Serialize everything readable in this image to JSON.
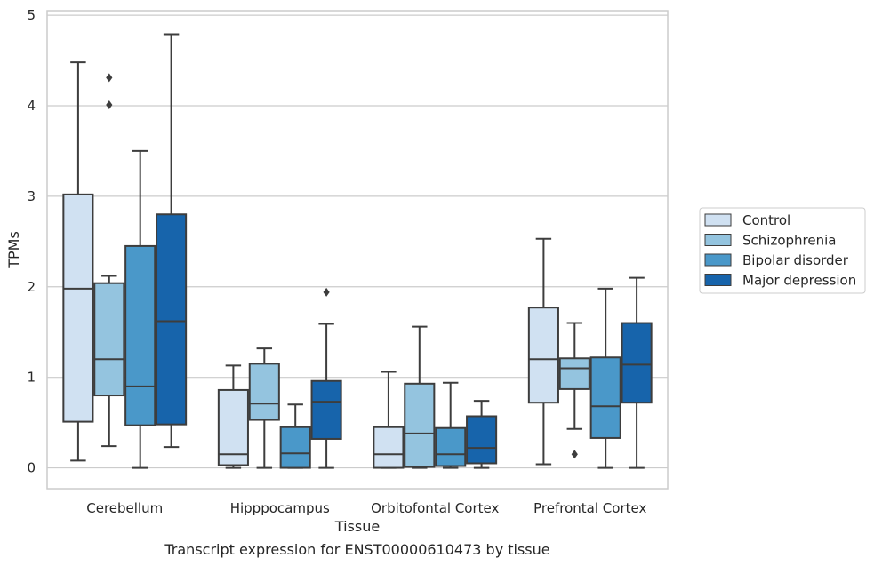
{
  "chart_data": {
    "type": "box",
    "xlabel": "Tissue",
    "ylabel": "TPMs",
    "caption": "Transcript expression for ENST00000610473 by tissue",
    "ylim": [
      -0.23,
      5.05
    ],
    "yticks": [
      0,
      1,
      2,
      3,
      4,
      5
    ],
    "grid": "horizontal",
    "legend_position": "right",
    "categories": [
      "Cerebellum",
      "Hipppocampus",
      "Orbitofontal Cortex",
      "Prefrontal Cortex"
    ],
    "series": [
      {
        "name": "Control",
        "color": "#d0e1f2",
        "boxes": [
          {
            "whisker_low": 0.08,
            "q1": 0.51,
            "median": 1.98,
            "q3": 3.02,
            "whisker_high": 4.48,
            "outliers": []
          },
          {
            "whisker_low": 0.0,
            "q1": 0.03,
            "median": 0.15,
            "q3": 0.86,
            "whisker_high": 1.13,
            "outliers": []
          },
          {
            "whisker_low": 0.0,
            "q1": 0.0,
            "median": 0.15,
            "q3": 0.45,
            "whisker_high": 1.06,
            "outliers": []
          },
          {
            "whisker_low": 0.04,
            "q1": 0.72,
            "median": 1.2,
            "q3": 1.77,
            "whisker_high": 2.53,
            "outliers": []
          }
        ]
      },
      {
        "name": "Schizophrenia",
        "color": "#94c4df",
        "boxes": [
          {
            "whisker_low": 0.24,
            "q1": 0.8,
            "median": 1.2,
            "q3": 2.04,
            "whisker_high": 2.12,
            "outliers": [
              4.01,
              4.31
            ]
          },
          {
            "whisker_low": 0.0,
            "q1": 0.53,
            "median": 0.71,
            "q3": 1.15,
            "whisker_high": 1.32,
            "outliers": []
          },
          {
            "whisker_low": 0.0,
            "q1": 0.01,
            "median": 0.38,
            "q3": 0.93,
            "whisker_high": 1.56,
            "outliers": []
          },
          {
            "whisker_low": 0.43,
            "q1": 0.87,
            "median": 1.1,
            "q3": 1.21,
            "whisker_high": 1.6,
            "outliers": [
              0.15
            ]
          }
        ]
      },
      {
        "name": "Bipolar disorder",
        "color": "#4a98c9",
        "boxes": [
          {
            "whisker_low": 0.0,
            "q1": 0.47,
            "median": 0.9,
            "q3": 2.45,
            "whisker_high": 3.5,
            "outliers": []
          },
          {
            "whisker_low": 0.0,
            "q1": 0.0,
            "median": 0.16,
            "q3": 0.45,
            "whisker_high": 0.7,
            "outliers": []
          },
          {
            "whisker_low": 0.0,
            "q1": 0.02,
            "median": 0.15,
            "q3": 0.44,
            "whisker_high": 0.94,
            "outliers": []
          },
          {
            "whisker_low": 0.0,
            "q1": 0.33,
            "median": 0.68,
            "q3": 1.22,
            "whisker_high": 1.98,
            "outliers": []
          }
        ]
      },
      {
        "name": "Major depression",
        "color": "#1764ab",
        "boxes": [
          {
            "whisker_low": 0.23,
            "q1": 0.48,
            "median": 1.62,
            "q3": 2.8,
            "whisker_high": 4.79,
            "outliers": []
          },
          {
            "whisker_low": 0.0,
            "q1": 0.32,
            "median": 0.73,
            "q3": 0.96,
            "whisker_high": 1.59,
            "outliers": [
              1.94
            ]
          },
          {
            "whisker_low": 0.0,
            "q1": 0.05,
            "median": 0.22,
            "q3": 0.57,
            "whisker_high": 0.74,
            "outliers": []
          },
          {
            "whisker_low": 0.0,
            "q1": 0.72,
            "median": 1.14,
            "q3": 1.6,
            "whisker_high": 2.1,
            "outliers": []
          }
        ]
      }
    ]
  }
}
